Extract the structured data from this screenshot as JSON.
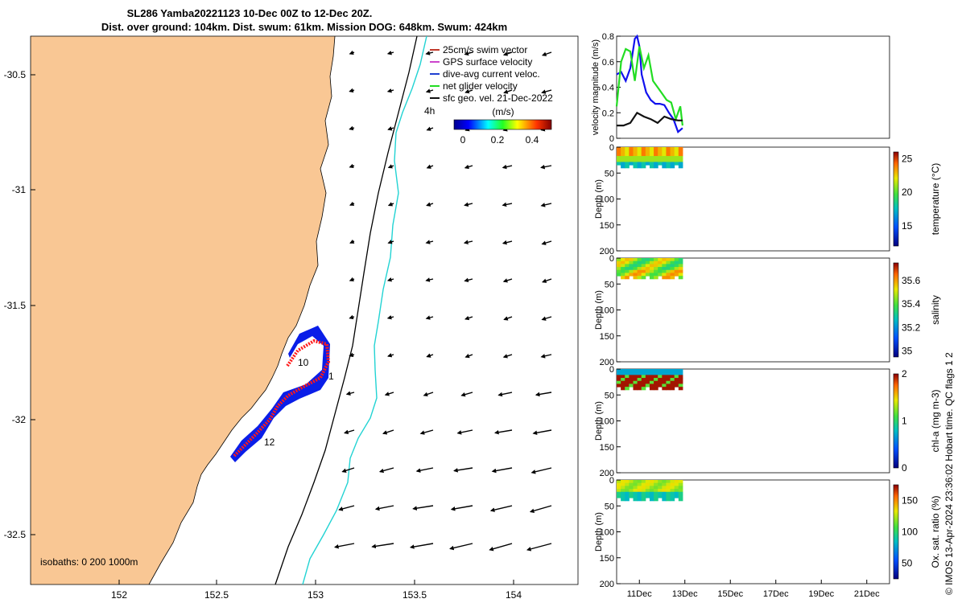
{
  "title": {
    "line1": "SL286 Yamba20221123 10-Dec 00Z to 12-Dec 20Z.",
    "line2": "Dist. over ground: 104km. Dist. swum: 61km. Mission DOG: 648km. Swum: 424km"
  },
  "map": {
    "lon_ticks": [
      "152",
      "152.5",
      "153",
      "153.5",
      "154"
    ],
    "lat_ticks": [
      "-30.5",
      "-31",
      "-31.5",
      "-32",
      "-32.5"
    ],
    "legend": [
      {
        "label": "25cm/s swim vector",
        "color": "#c0392b"
      },
      {
        "label": "GPS surface velocity",
        "color": "#cc44cc"
      },
      {
        "label": "dive-avg current veloc.",
        "color": "#1f3fd1"
      },
      {
        "label": "net glider velocity",
        "color": "#22dd22"
      },
      {
        "label": "sfc geo. vel. 21-Dec-2022",
        "color": "#111111"
      }
    ],
    "colorbar_unit": "(m/s)",
    "colorbar_ticks": [
      "0",
      "0.2",
      "0.4"
    ],
    "isobaths_label": "isobaths: 0   200  1000m",
    "day_labels": [
      "10",
      "12",
      "1",
      "4h"
    ],
    "colors": {
      "land": "#f9c794",
      "deep_isobath": "#22d3d3",
      "track": "#ff1a1a",
      "current": "#0a1ee8"
    }
  },
  "chart_data": [
    {
      "type": "line",
      "ylabel": "velocity magnitude (m/s)",
      "ylim": [
        0,
        0.8
      ],
      "y_ticks": [
        "0",
        "0.2",
        "0.4",
        "0.6",
        "0.8"
      ],
      "x_days": [
        10,
        22
      ],
      "series": [
        {
          "color": "#1111ee",
          "x": [
            10.0,
            10.2,
            10.4,
            10.6,
            10.8,
            10.9,
            11.0,
            11.1,
            11.3,
            11.5,
            11.7,
            11.9,
            12.1,
            12.3,
            12.5,
            12.7,
            12.9
          ],
          "y": [
            0.5,
            0.52,
            0.45,
            0.55,
            0.78,
            0.8,
            0.72,
            0.5,
            0.36,
            0.3,
            0.27,
            0.27,
            0.26,
            0.2,
            0.15,
            0.05,
            0.08
          ]
        },
        {
          "color": "#22dd22",
          "x": [
            10.0,
            10.2,
            10.4,
            10.6,
            10.8,
            11.0,
            11.2,
            11.4,
            11.6,
            11.8,
            12.0,
            12.2,
            12.4,
            12.6,
            12.8,
            12.9
          ],
          "y": [
            0.25,
            0.6,
            0.7,
            0.68,
            0.45,
            0.72,
            0.55,
            0.65,
            0.45,
            0.4,
            0.35,
            0.3,
            0.28,
            0.15,
            0.25,
            0.1
          ]
        },
        {
          "color": "#111111",
          "x": [
            10.0,
            10.3,
            10.6,
            10.9,
            11.2,
            11.5,
            11.8,
            12.1,
            12.4,
            12.7,
            12.9
          ],
          "y": [
            0.1,
            0.1,
            0.12,
            0.2,
            0.17,
            0.15,
            0.12,
            0.17,
            0.15,
            0.14,
            0.14
          ]
        }
      ]
    },
    {
      "type": "heatmap",
      "variable": "temperature",
      "cbar_label": "temperature (°C)",
      "cbar_ticks": [
        "15",
        "20",
        "25"
      ],
      "cbar_range": [
        12,
        26
      ],
      "ylabel": "Depth (m)",
      "y_ticks": [
        "0",
        "50",
        "100",
        "150",
        "200"
      ],
      "ylim": [
        0,
        200
      ],
      "x_days": [
        10,
        22
      ],
      "x_ticks": [
        "11Dec",
        "13Dec",
        "15Dec",
        "17Dec",
        "19Dec",
        "21Dec"
      ]
    },
    {
      "type": "heatmap",
      "variable": "salinity",
      "cbar_label": "salinity",
      "cbar_ticks": [
        "35",
        "35.2",
        "35.4",
        "35.6"
      ],
      "cbar_range": [
        34.95,
        35.75
      ],
      "ylabel": "Depth (m)",
      "y_ticks": [
        "0",
        "50",
        "100",
        "150",
        "200"
      ],
      "ylim": [
        0,
        200
      ],
      "x_days": [
        10,
        22
      ],
      "x_ticks": [
        "11Dec",
        "13Dec",
        "15Dec",
        "17Dec",
        "19Dec",
        "21Dec"
      ]
    },
    {
      "type": "heatmap",
      "variable": "chlorophyll",
      "cbar_label": "chl-a (mg m-3)",
      "cbar_ticks": [
        "0",
        "1",
        "2"
      ],
      "cbar_range": [
        0,
        2
      ],
      "ylabel": "Depth (m)",
      "y_ticks": [
        "0",
        "50",
        "100",
        "150",
        "200"
      ],
      "ylim": [
        0,
        200
      ],
      "x_days": [
        10,
        22
      ],
      "x_ticks": [
        "11Dec",
        "13Dec",
        "15Dec",
        "17Dec",
        "19Dec",
        "21Dec"
      ]
    },
    {
      "type": "heatmap",
      "variable": "oxygen",
      "cbar_label": "Ox. sat. ratio (%)",
      "cbar_ticks": [
        "50",
        "100",
        "150"
      ],
      "cbar_range": [
        25,
        175
      ],
      "ylabel": "Depth (m)",
      "y_ticks": [
        "0",
        "50",
        "100",
        "150",
        "200"
      ],
      "ylim": [
        0,
        200
      ],
      "x_days": [
        10,
        22
      ],
      "x_ticks": [
        "11Dec",
        "13Dec",
        "15Dec",
        "17Dec",
        "19Dec",
        "21Dec"
      ]
    }
  ],
  "credit": "© IMOS 13-Apr-2024 23:36:02 Hobart time. QC flags 1  2"
}
